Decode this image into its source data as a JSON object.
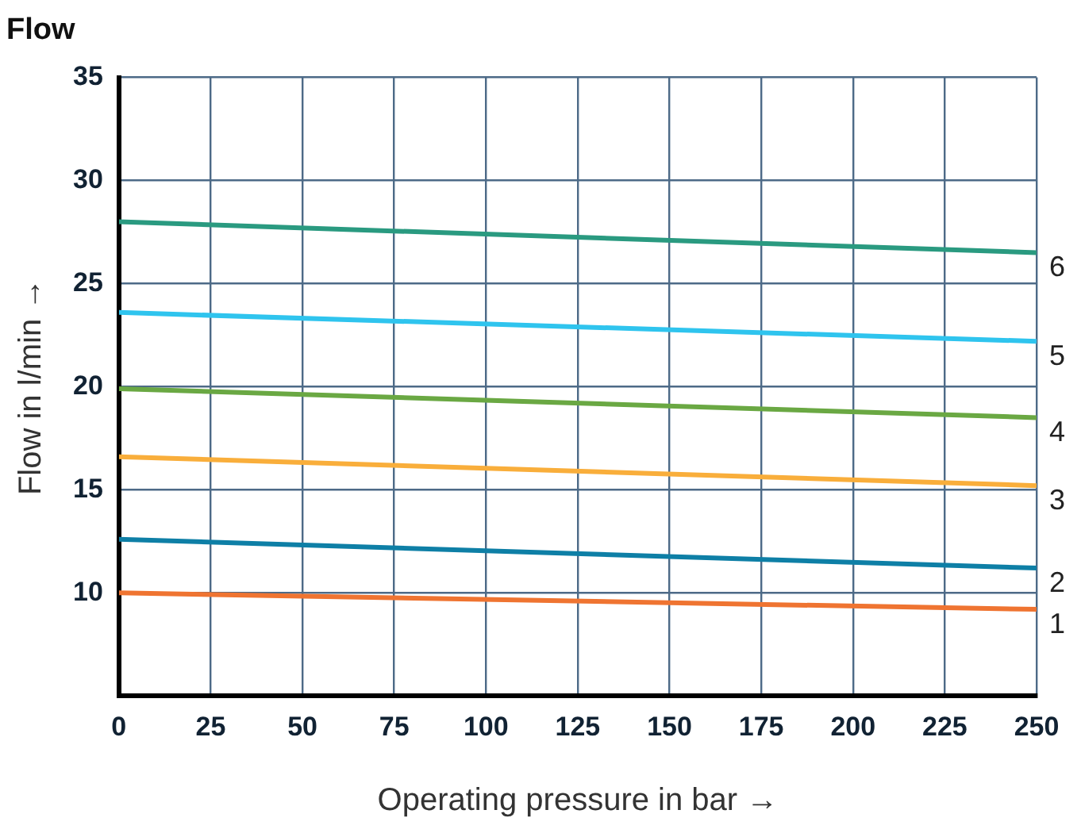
{
  "chart_data": {
    "type": "line",
    "title": "Flow",
    "xlabel": "Operating pressure in bar →",
    "ylabel": "Flow in l/min →",
    "x": [
      0,
      250
    ],
    "series": [
      {
        "name": "1",
        "color": "#ef7431",
        "values": [
          10.0,
          9.2
        ]
      },
      {
        "name": "2",
        "color": "#0e7fa6",
        "values": [
          12.6,
          11.2
        ]
      },
      {
        "name": "3",
        "color": "#f9ae3b",
        "values": [
          16.6,
          15.2
        ]
      },
      {
        "name": "4",
        "color": "#6aa843",
        "values": [
          19.9,
          18.5
        ]
      },
      {
        "name": "5",
        "color": "#2fc4ee",
        "values": [
          23.6,
          22.2
        ]
      },
      {
        "name": "6",
        "color": "#2a9a80",
        "values": [
          28.0,
          26.5
        ]
      }
    ],
    "xlim": [
      0,
      250
    ],
    "xticks": [
      0,
      25,
      50,
      75,
      100,
      125,
      150,
      175,
      200,
      225,
      250
    ],
    "ylim": [
      5,
      35
    ],
    "yticks": [
      {
        "value": 5,
        "label": null
      },
      10,
      15,
      20,
      25,
      30,
      35
    ],
    "grid": true,
    "legend": false,
    "marker": "none",
    "line_style": "solid"
  }
}
